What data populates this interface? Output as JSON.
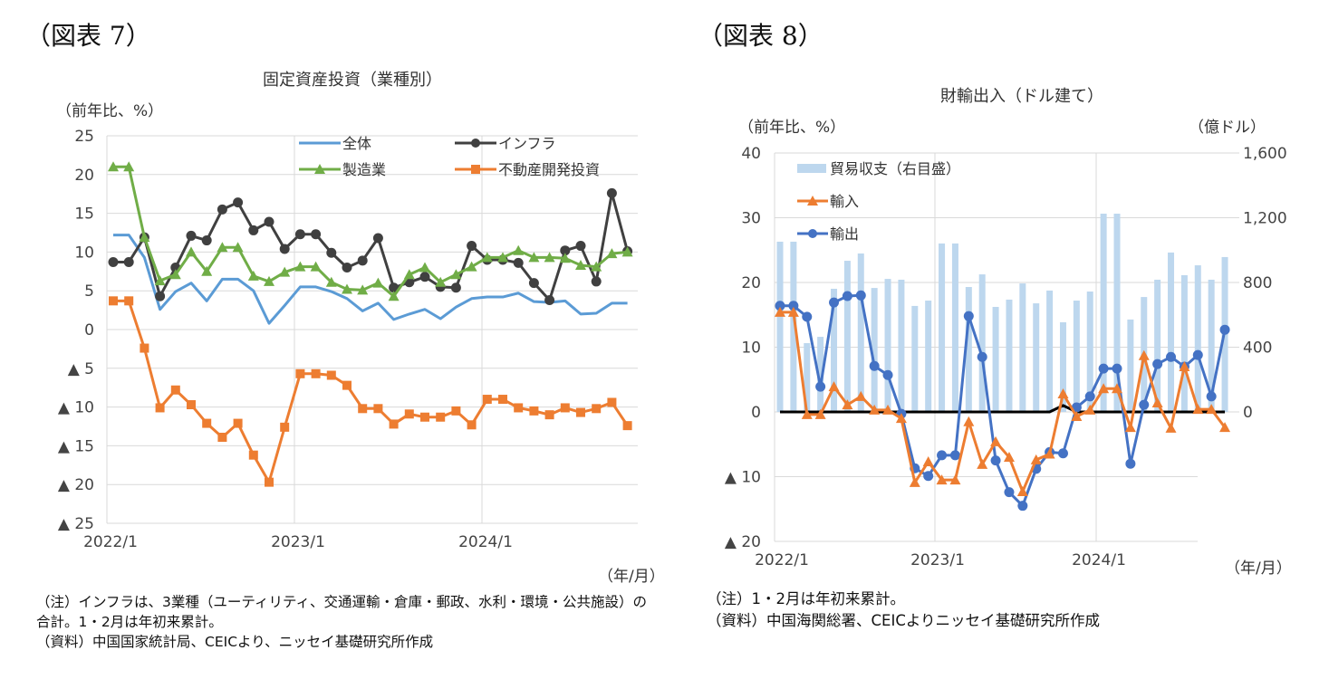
{
  "figure7": {
    "label": "（図表 7）",
    "unit_left": "（前年比、%）",
    "unit_x": "（年/月）",
    "notes": [
      "（注）インフラは、3業種（ユーティリティ、交通運輸・倉庫・郵政、水利・環境・公共施設）の",
      "合計。1・2月は年初来累計。",
      "（資料）中国国家統計局、CEICより、ニッセイ基礎研究所作成"
    ]
  },
  "figure8": {
    "label": "（図表 8）",
    "unit_left": "（前年比、%）",
    "unit_right": "（億ドル）",
    "unit_x": "（年/月）",
    "notes": [
      "（注）1・2月は年初来累計。",
      "（資料）中国海関総署、CEICよりニッセイ基礎研究所作成"
    ]
  },
  "chart_data": [
    {
      "type": "line",
      "title": "固定資産投資（業種別）",
      "ylabel": "（前年比、%）",
      "xlabel": "（年/月）",
      "ylim": [
        -25,
        25
      ],
      "y_ticks": [
        25,
        20,
        15,
        10,
        5,
        0,
        -5,
        -10,
        -15,
        -20,
        -25
      ],
      "y_tick_labels": [
        "25",
        "20",
        "15",
        "10",
        "5",
        "0",
        "▲ 5",
        "▲ 10",
        "▲ 15",
        "▲ 20",
        "▲ 25"
      ],
      "x_tick_labels": [
        "2022/1",
        "2023/1",
        "2024/1"
      ],
      "x_range": [
        "2022/1",
        "2024/10"
      ],
      "grid": true,
      "legend": "top",
      "series": [
        {
          "name": "全体",
          "color": "#5b9bd5",
          "marker": "none",
          "values": [
            12.2,
            12.2,
            9.3,
            2.6,
            4.9,
            6.0,
            3.7,
            6.5,
            6.5,
            5.0,
            0.8,
            3.1,
            5.5,
            5.5,
            4.9,
            4.0,
            2.4,
            3.4,
            1.3,
            2.0,
            2.6,
            1.4,
            2.9,
            4.0,
            4.2,
            4.2,
            4.7,
            3.6,
            3.5,
            3.7,
            2.0,
            2.1,
            3.4,
            3.4
          ]
        },
        {
          "name": "インフラ",
          "color": "#404040",
          "marker": "circle",
          "values": [
            8.7,
            8.7,
            11.9,
            4.3,
            8.0,
            12.1,
            11.5,
            15.5,
            16.4,
            12.8,
            13.9,
            10.4,
            12.3,
            12.3,
            9.9,
            8.0,
            8.9,
            11.8,
            5.4,
            6.1,
            6.8,
            5.5,
            5.4,
            10.8,
            9.0,
            9.0,
            8.6,
            6.0,
            3.8,
            10.2,
            10.8,
            6.2,
            17.6,
            10.1
          ]
        },
        {
          "name": "製造業",
          "color": "#70ad47",
          "marker": "triangle",
          "values": [
            21.0,
            21.0,
            11.9,
            6.3,
            7.1,
            10.0,
            7.5,
            10.6,
            10.6,
            6.9,
            6.2,
            7.4,
            8.1,
            8.1,
            6.1,
            5.2,
            5.1,
            6.0,
            4.3,
            7.1,
            8.0,
            6.1,
            7.1,
            8.1,
            9.3,
            9.3,
            10.2,
            9.3,
            9.3,
            9.2,
            8.3,
            8.1,
            9.8,
            10.0
          ]
        },
        {
          "name": "不動産開発投資",
          "color": "#ed7d31",
          "marker": "square",
          "values": [
            3.7,
            3.7,
            -2.4,
            -10.1,
            -7.8,
            -9.7,
            -12.1,
            -13.9,
            -12.1,
            -16.2,
            -19.7,
            -12.6,
            -5.7,
            -5.7,
            -5.9,
            -7.2,
            -10.2,
            -10.2,
            -12.2,
            -10.9,
            -11.3,
            -11.3,
            -10.5,
            -12.3,
            -9.0,
            -9.0,
            -10.1,
            -10.5,
            -11.0,
            -10.1,
            -10.7,
            -10.2,
            -9.4,
            -12.4
          ]
        }
      ]
    },
    {
      "type": "bar+line",
      "title": "財輸出入（ドル建て）",
      "ylabel": "（前年比、%）",
      "y2label": "（億ドル）",
      "xlabel": "（年/月）",
      "ylim": [
        -20,
        40
      ],
      "y2lim": [
        -800,
        1600
      ],
      "y_ticks": [
        40,
        30,
        20,
        10,
        0,
        -10,
        -20
      ],
      "y_tick_labels": [
        "40",
        "30",
        "20",
        "10",
        "0",
        "▲ 10",
        "▲ 20"
      ],
      "y2_ticks": [
        1600,
        1200,
        800,
        400,
        0
      ],
      "y2_tick_labels": [
        "1,600",
        "1,200",
        "800",
        "400",
        "0"
      ],
      "x_tick_labels": [
        "2022/1",
        "2023/1",
        "2024/1"
      ],
      "x_range": [
        "2022/1",
        "2024/10"
      ],
      "grid": true,
      "legend": "top-left",
      "series": [
        {
          "name": "貿易収支（右目盛）",
          "axis": "right",
          "kind": "bar",
          "color": "#bdd7ee",
          "values": [
            1052,
            1052,
            425,
            464,
            761,
            934,
            979,
            766,
            822,
            817,
            655,
            688,
            1041,
            1041,
            772,
            850,
            649,
            694,
            794,
            671,
            750,
            554,
            688,
            744,
            1225,
            1225,
            571,
            710,
            817,
            985,
            845,
            906,
            817,
            957
          ]
        },
        {
          "name": "輸入",
          "axis": "left",
          "kind": "line",
          "color": "#ed7d31",
          "marker": "triangle",
          "values": [
            15.4,
            15.4,
            -0.4,
            -0.4,
            3.9,
            1.1,
            2.4,
            0.3,
            0.3,
            -1.0,
            -10.9,
            -7.7,
            -10.5,
            -10.5,
            -1.5,
            -8.1,
            -4.6,
            -7.0,
            -12.3,
            -7.4,
            -6.5,
            2.8,
            -0.7,
            0.3,
            3.6,
            3.6,
            -2.4,
            8.7,
            1.4,
            -2.5,
            7.0,
            0.4,
            0.4,
            -2.4
          ]
        },
        {
          "name": "輸出",
          "axis": "left",
          "kind": "line",
          "color": "#4472c4",
          "marker": "circle",
          "values": [
            16.4,
            16.4,
            14.7,
            3.9,
            16.9,
            17.9,
            18.0,
            7.1,
            5.7,
            -0.3,
            -8.7,
            -9.9,
            -6.7,
            -6.7,
            14.8,
            8.5,
            -7.5,
            -12.4,
            -14.5,
            -8.8,
            -6.2,
            -6.4,
            0.7,
            2.4,
            6.7,
            6.7,
            -8.0,
            1.1,
            7.4,
            8.5,
            7.0,
            8.8,
            2.4,
            12.7
          ]
        },
        {
          "axis": "left",
          "kind": "line",
          "color": "#000000",
          "marker": "none",
          "values": [
            0,
            0,
            0,
            0,
            0,
            0,
            0,
            0,
            0,
            0,
            0,
            0,
            0,
            0,
            0,
            0,
            0,
            0,
            0,
            0,
            0,
            1.0,
            0,
            0,
            0,
            0,
            0,
            0,
            0,
            0,
            0,
            0,
            0,
            0
          ]
        }
      ]
    }
  ]
}
